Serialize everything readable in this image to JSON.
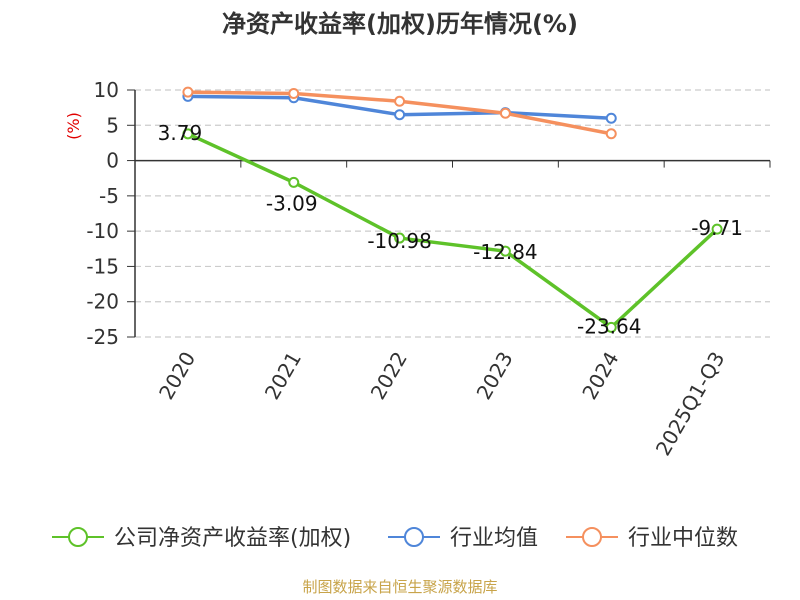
{
  "chart_data": {
    "type": "line",
    "title": "净资产收益率(加权)历年情况(%)",
    "ylabel": "(%)",
    "categories": [
      "2020",
      "2021",
      "2022",
      "2023",
      "2024",
      "2025Q1-Q3"
    ],
    "ylim": [
      -25,
      10
    ],
    "yticks": [
      10,
      5,
      0,
      -5,
      -10,
      -15,
      -20,
      -25
    ],
    "grid": true,
    "legend_position": "bottom",
    "series": [
      {
        "name": "公司净资产收益率(加权)",
        "color": "#5ec229",
        "values": [
          3.79,
          -3.09,
          -10.98,
          -12.84,
          -23.64,
          -9.71
        ],
        "data_labels": [
          "3.79",
          "-3.09",
          "-10.98",
          "-12.84",
          "-23.64",
          "-9.71"
        ]
      },
      {
        "name": "行业均值",
        "color": "#4f86d9",
        "values": [
          9.1,
          8.9,
          6.5,
          6.8,
          6.0,
          null
        ]
      },
      {
        "name": "行业中位数",
        "color": "#f5905e",
        "values": [
          9.7,
          9.5,
          8.4,
          6.7,
          3.8,
          null
        ]
      }
    ]
  },
  "footer": {
    "source": "制图数据来自恒生聚源数据库"
  },
  "colors": {
    "title": "#333333",
    "ylabel": "#e00000",
    "axis": "#333333",
    "grid": "#cccccc",
    "source": "#c8a44a"
  }
}
